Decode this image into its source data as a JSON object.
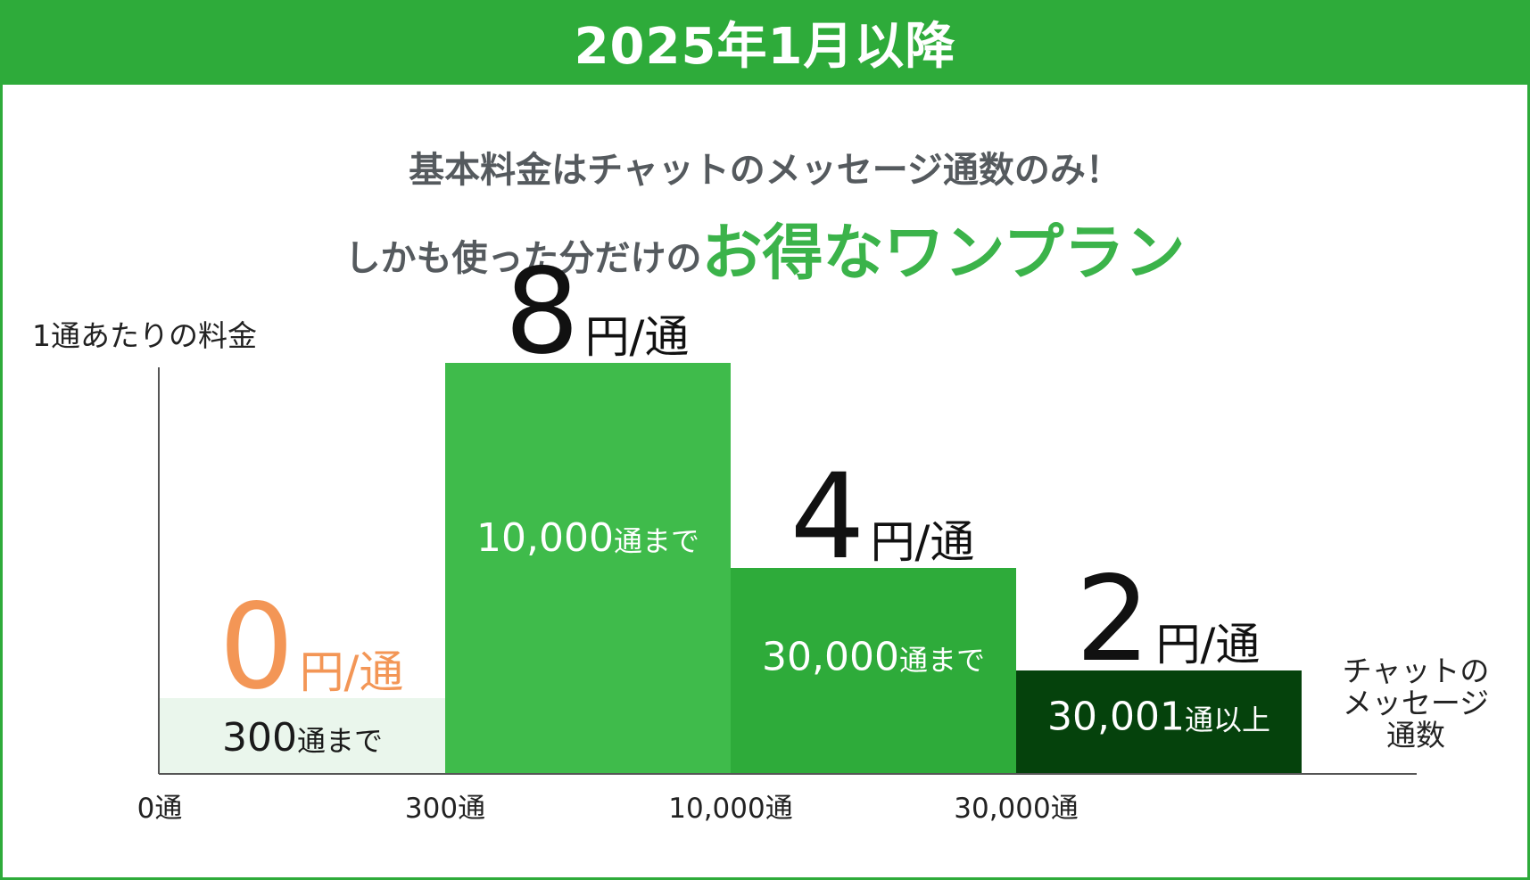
{
  "header": {
    "title": "2025年1月以降"
  },
  "headline": {
    "line1": "基本料金はチャットのメッセージ通数のみ！",
    "line2_pre": "しかも使った分だけの",
    "line2_emphasis": "お得なワンプラン"
  },
  "colors": {
    "brand": "#2eab3a",
    "headline_text": "#555a5e",
    "emphasis": "#3bb34a",
    "free_price": "#f39656"
  },
  "chart_data": {
    "type": "bar",
    "title": "",
    "ylabel": "1通あたりの料金",
    "xlabel": "チャットの\nメッセージ\n通数",
    "x_ticks": [
      "0通",
      "300通",
      "10,000通",
      "30,000通"
    ],
    "categories": [
      "300通まで",
      "10,000通まで",
      "30,000通まで",
      "30,001通以上"
    ],
    "values": [
      0,
      8,
      4,
      2
    ],
    "unit": "円/通",
    "tiers": [
      {
        "range_number": "300",
        "range_suffix": "通まで",
        "price": "0",
        "unit": "円/通",
        "color": "#eaf6ec",
        "price_color": "#f39656",
        "range_color": "#1a1a1a"
      },
      {
        "range_number": "10,000",
        "range_suffix": "通まで",
        "price": "8",
        "unit": "円/通",
        "color": "#3fbb4b",
        "price_color": "#111111",
        "range_color": "#ffffff"
      },
      {
        "range_number": "30,000",
        "range_suffix": "通まで",
        "price": "4",
        "unit": "円/通",
        "color": "#2eab3a",
        "price_color": "#111111",
        "range_color": "#ffffff"
      },
      {
        "range_number": "30,001",
        "range_suffix": "通以上",
        "price": "2",
        "unit": "円/通",
        "color": "#05420c",
        "price_color": "#111111",
        "range_color": "#ffffff"
      }
    ],
    "grid": false,
    "legend": "none"
  }
}
